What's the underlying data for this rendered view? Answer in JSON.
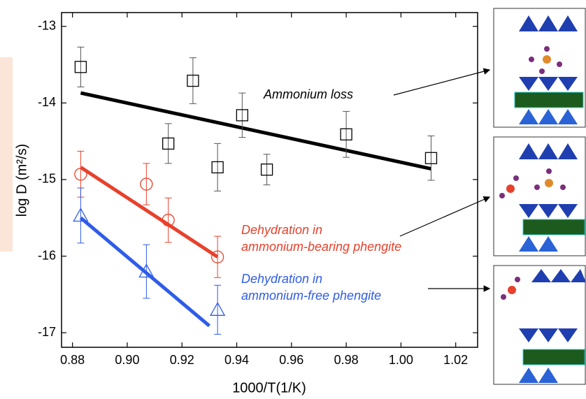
{
  "chart_data": {
    "type": "scatter",
    "xlabel": "1000/T(1/K)",
    "ylabel": "log D (m²/s)",
    "xlim": [
      0.876,
      1.028
    ],
    "ylim": [
      -17.19,
      -12.82
    ],
    "xticks": [
      0.88,
      {
        "value": 0.9,
        "label": "0.90"
      },
      0.92,
      0.94,
      0.96,
      0.98,
      {
        "value": 1.0,
        "label": "1.00"
      },
      1.02
    ],
    "yticks": [
      -13,
      -14,
      -15,
      -16,
      -17
    ],
    "series": [
      {
        "marker": "square",
        "color": "#000000",
        "x": [
          0.883,
          0.924,
          0.915,
          0.933,
          0.942,
          0.951,
          0.98,
          1.011
        ],
        "values": [
          -13.53,
          -13.71,
          -14.53,
          -14.84,
          -14.16,
          -14.87,
          -14.41,
          -14.72
        ],
        "errors": [
          0.26,
          0.3,
          0.26,
          0.31,
          0.29,
          0.2,
          0.3,
          0.29
        ]
      },
      {
        "marker": "circle",
        "color": "#e8412c",
        "x": [
          0.883,
          0.907,
          0.915,
          0.933
        ],
        "values": [
          -14.93,
          -15.06,
          -15.53,
          -16.01
        ],
        "errors": [
          0.3,
          0.27,
          0.29,
          0.27
        ]
      },
      {
        "marker": "triangle",
        "color": "#2f5ce8",
        "x": [
          0.883,
          0.907,
          0.933
        ],
        "values": [
          -15.47,
          -16.2,
          -16.7
        ],
        "errors": [
          0.36,
          0.35,
          0.32
        ]
      }
    ],
    "fits": [
      {
        "color": "#000000",
        "x": [
          0.883,
          1.011
        ],
        "values": [
          -13.87,
          -14.86
        ]
      },
      {
        "color": "#e8412c",
        "x": [
          0.883,
          0.933
        ],
        "values": [
          -14.84,
          -16.01
        ]
      },
      {
        "color": "#2f5ce8",
        "x": [
          0.883,
          0.93
        ],
        "values": [
          -15.5,
          -16.91
        ]
      }
    ],
    "annotations": [
      {
        "color": "#000000",
        "lines": [
          "Ammonium loss"
        ]
      },
      {
        "color": "#e8412c",
        "lines": [
          "Dehydration in",
          "ammonium-bearing phengite"
        ]
      },
      {
        "color": "#2f5ce8",
        "lines": [
          "Dehydration in",
          "ammonium-free phengite"
        ]
      }
    ]
  }
}
